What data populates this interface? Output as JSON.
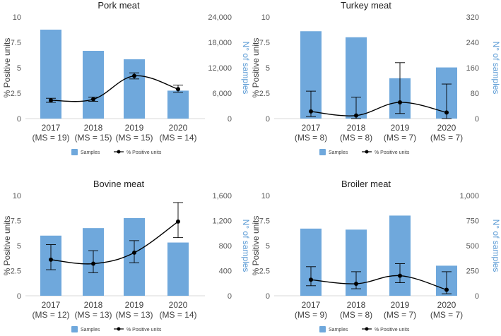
{
  "colors": {
    "bar": "#6FA8DC",
    "line": "#000000",
    "axis_right_label": "#5B9BD5"
  },
  "legend": {
    "samples": "Samples",
    "positive": "% Positive units"
  },
  "chart_data": [
    {
      "type": "bar",
      "title": "Pork meat",
      "categories": [
        "2017",
        "2018",
        "2019",
        "2020"
      ],
      "category_sublabels": [
        "(MS = 19)",
        "(MS = 15)",
        "(MS = 15)",
        "(MS = 14)"
      ],
      "ylabel": "% Positive units",
      "y2label": "N° of samples",
      "ylim": [
        0,
        10
      ],
      "yticks": [
        "0",
        "2.5",
        "5",
        "7.5",
        "10"
      ],
      "y2lim": [
        0,
        24000
      ],
      "y2ticks": [
        "0",
        "6,000",
        "12,000",
        "18,000",
        "24,000"
      ],
      "series": [
        {
          "name": "Samples",
          "type": "bar",
          "axis": "right",
          "values": [
            21000,
            16000,
            14000,
            6600
          ]
        },
        {
          "name": "% Positive units",
          "type": "line",
          "axis": "left",
          "values": [
            1.8,
            1.9,
            4.2,
            2.9
          ],
          "err_low": [
            1.6,
            1.7,
            3.9,
            2.6
          ],
          "err_high": [
            2.0,
            2.1,
            4.5,
            3.3
          ]
        }
      ]
    },
    {
      "type": "bar",
      "title": "Turkey meat",
      "categories": [
        "2017",
        "2018",
        "2019",
        "2020"
      ],
      "category_sublabels": [
        "(MS = 8)",
        "(MS = 8)",
        "(MS = 7)",
        "(MS = 7)"
      ],
      "ylabel": "% Positive units",
      "y2label": "N° of samples",
      "ylim": [
        0,
        10
      ],
      "yticks": [
        "0",
        "2.5",
        "5",
        "7.5",
        "10"
      ],
      "y2lim": [
        0,
        320
      ],
      "y2ticks": [
        "0",
        "80",
        "160",
        "240",
        "320"
      ],
      "series": [
        {
          "name": "Samples",
          "type": "bar",
          "axis": "right",
          "values": [
            275,
            256,
            127,
            161
          ]
        },
        {
          "name": "% Positive units",
          "type": "line",
          "axis": "left",
          "values": [
            0.7,
            0.3,
            1.6,
            0.6
          ],
          "err_low": [
            0.2,
            0.0,
            0.5,
            0.0
          ],
          "err_high": [
            2.7,
            2.1,
            5.5,
            3.4
          ]
        }
      ]
    },
    {
      "type": "bar",
      "title": "Bovine meat",
      "categories": [
        "2017",
        "2018",
        "2019",
        "2020"
      ],
      "category_sublabels": [
        "(MS = 12)",
        "(MS = 13)",
        "(MS = 13)",
        "(MS = 14)"
      ],
      "ylabel": "% Positive units",
      "y2label": "N° of samples",
      "ylim": [
        0,
        10
      ],
      "yticks": [
        "0",
        "2.5",
        "5",
        "7.5",
        "10"
      ],
      "y2lim": [
        0,
        1600
      ],
      "y2ticks": [
        "0",
        "400",
        "800",
        "1,200",
        "1,600"
      ],
      "series": [
        {
          "name": "Samples",
          "type": "bar",
          "axis": "right",
          "values": [
            960,
            1080,
            1240,
            850
          ]
        },
        {
          "name": "% Positive units",
          "type": "line",
          "axis": "left",
          "values": [
            3.6,
            3.2,
            4.3,
            7.4
          ],
          "err_low": [
            2.6,
            2.3,
            3.3,
            5.8
          ],
          "err_high": [
            5.1,
            4.5,
            5.5,
            9.3
          ]
        }
      ]
    },
    {
      "type": "bar",
      "title": "Broiler meat",
      "categories": [
        "2017",
        "2018",
        "2019",
        "2020"
      ],
      "category_sublabels": [
        "(MS = 9)",
        "(MS = 8)",
        "(MS = 7)",
        "(MS = 7)"
      ],
      "ylabel": "% Positive units",
      "y2label": "N° of samples",
      "ylim": [
        0,
        10
      ],
      "yticks": [
        "0",
        "2.5",
        "5",
        "7.5",
        "10"
      ],
      "y2lim": [
        0,
        1000
      ],
      "y2ticks": [
        "0",
        "250",
        "500",
        "750",
        "1,000"
      ],
      "series": [
        {
          "name": "Samples",
          "type": "bar",
          "axis": "right",
          "values": [
            670,
            660,
            800,
            300
          ]
        },
        {
          "name": "% Positive units",
          "type": "line",
          "axis": "left",
          "values": [
            1.6,
            1.2,
            2.0,
            0.6
          ],
          "err_low": [
            1.0,
            0.7,
            1.3,
            0.2
          ],
          "err_high": [
            2.9,
            2.4,
            3.2,
            2.4
          ]
        }
      ]
    }
  ]
}
